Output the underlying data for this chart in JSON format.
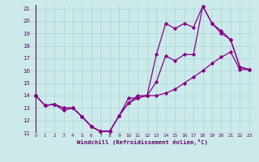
{
  "xlabel": "Windchill (Refroidissement éolien,°C)",
  "bg_color": "#cceaea",
  "grid_color": "#aad4d4",
  "axis_color": "#660066",
  "line_color": "#880088",
  "xlim": [
    0,
    23
  ],
  "ylim": [
    11,
    21
  ],
  "xticks": [
    0,
    1,
    2,
    3,
    4,
    5,
    6,
    7,
    8,
    9,
    10,
    11,
    12,
    13,
    14,
    15,
    16,
    17,
    18,
    19,
    20,
    21,
    22,
    23
  ],
  "yticks": [
    11,
    12,
    13,
    14,
    15,
    16,
    17,
    18,
    19,
    20,
    21
  ],
  "line1_x": [
    0,
    1,
    2,
    3,
    4,
    5,
    6,
    7,
    8,
    9,
    10,
    11,
    12,
    13,
    14,
    15,
    16,
    17,
    18,
    19,
    20,
    21,
    22,
    23
  ],
  "line1_y": [
    14,
    13.2,
    13.3,
    12.8,
    13.0,
    12.3,
    11.5,
    11.1,
    11.15,
    12.4,
    13.8,
    13.8,
    14.0,
    15.1,
    17.2,
    16.8,
    17.3,
    17.3,
    21.2,
    19.8,
    19.0,
    18.5,
    16.3,
    16.1
  ],
  "line2_x": [
    0,
    1,
    2,
    3,
    4,
    5,
    6,
    7,
    8,
    9,
    10,
    11,
    12,
    13,
    14,
    15,
    16,
    17,
    18,
    19,
    20,
    21,
    22,
    23
  ],
  "line2_y": [
    14,
    13.2,
    13.3,
    13.0,
    13.0,
    12.3,
    11.5,
    11.1,
    11.15,
    12.4,
    13.4,
    14.0,
    14.0,
    17.3,
    19.8,
    19.4,
    19.8,
    19.5,
    21.2,
    19.8,
    19.2,
    18.5,
    16.3,
    16.1
  ],
  "line3_x": [
    0,
    1,
    2,
    3,
    4,
    5,
    6,
    7,
    8,
    9,
    10,
    11,
    12,
    13,
    14,
    15,
    16,
    17,
    18,
    19,
    20,
    21,
    22,
    23
  ],
  "line3_y": [
    14,
    13.2,
    13.3,
    13.0,
    13.0,
    12.3,
    11.5,
    11.1,
    11.15,
    12.4,
    13.4,
    13.8,
    14.0,
    14.0,
    14.2,
    14.5,
    15.0,
    15.5,
    16.0,
    16.6,
    17.1,
    17.5,
    16.1,
    16.1
  ]
}
